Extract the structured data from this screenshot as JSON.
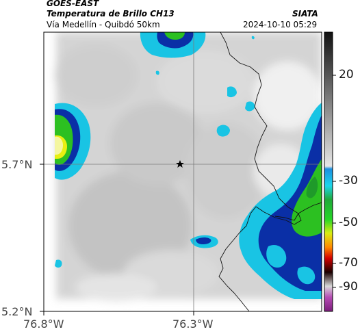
{
  "header": {
    "satellite": "GOES-EAST",
    "product": "Temperatura de Brillo CH13",
    "region": "Vía Medellín - Quibdó 50km",
    "org": "SIATA",
    "datetime": "2024-10-10 05:29"
  },
  "map": {
    "lat_ticks": [
      "5.7°N",
      "5.2°N"
    ],
    "lon_ticks": [
      "76.8°W",
      "76.3°W"
    ],
    "marker": "star"
  },
  "colorbar": {
    "labels": [
      "20",
      "-30",
      "-50",
      "-70",
      "-90"
    ]
  },
  "colors": {
    "cyan": "#19c4e4",
    "blue": "#0a2fa6",
    "green": "#2cc021",
    "yellow": "#e8ef12"
  }
}
